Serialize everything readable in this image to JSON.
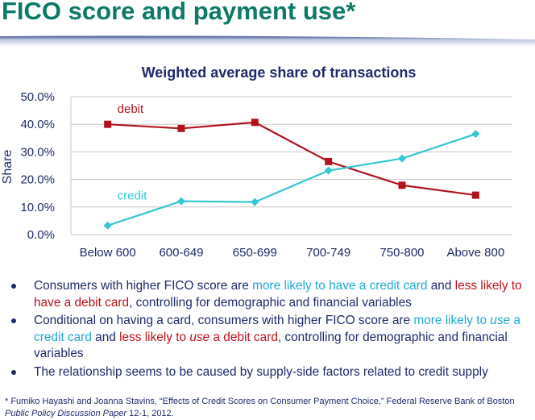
{
  "slide": {
    "title": "FICO score and payment use*"
  },
  "colors": {
    "title": "#0d7a68",
    "debit": "#b0131e",
    "credit": "#33c7d1",
    "text": "#1f2a6b",
    "highlight_credit": "#1ea9d6",
    "highlight_debit": "#c0101a"
  },
  "chart_data": {
    "type": "line",
    "title": "Weighted average share of transactions",
    "xlabel": "",
    "ylabel": "Share",
    "categories": [
      "Below 600",
      "600-649",
      "650-699",
      "700-749",
      "750-800",
      "Above 800"
    ],
    "ylim": [
      0,
      50
    ],
    "yticks": [
      "0.0%",
      "10.0%",
      "20.0%",
      "30.0%",
      "40.0%",
      "50.0%"
    ],
    "grid": "horizontal",
    "series": [
      {
        "name": "debit",
        "marker": "square",
        "values": [
          40.0,
          38.5,
          40.7,
          26.5,
          17.9,
          14.3
        ]
      },
      {
        "name": "credit",
        "marker": "diamond",
        "values": [
          3.3,
          12.1,
          11.8,
          23.2,
          27.6,
          36.5
        ]
      }
    ]
  },
  "bullets": [
    {
      "parts": [
        {
          "t": "Consumers with higher FICO score are ",
          "c": ""
        },
        {
          "t": "more likely to have a credit card",
          "c": "hl-credit"
        },
        {
          "t": " and ",
          "c": ""
        },
        {
          "t": "less likely to have a debit card",
          "c": "hl-debit"
        },
        {
          "t": ", controlling for demographic and financial variables",
          "c": ""
        }
      ]
    },
    {
      "parts": [
        {
          "t": "Conditional on having a card, consumers with higher FICO score are ",
          "c": ""
        },
        {
          "t": "more likely to ",
          "c": "hl-credit"
        },
        {
          "t": "use",
          "c": "hl-credit",
          "em": true
        },
        {
          "t": " a credit card",
          "c": "hl-credit"
        },
        {
          "t": " and ",
          "c": ""
        },
        {
          "t": "less likely to ",
          "c": "hl-debit"
        },
        {
          "t": "use",
          "c": "hl-debit",
          "em": true
        },
        {
          "t": " a debit card",
          "c": "hl-debit"
        },
        {
          "t": ", controlling for demographic and financial variables",
          "c": ""
        }
      ]
    },
    {
      "parts": [
        {
          "t": "The relationship seems to be caused by supply-side factors related to credit supply",
          "c": ""
        }
      ]
    }
  ],
  "footnote": {
    "main": "* Fumiko Hayashi and Joanna Stavins, “Effects of Credit Scores on Consumer Payment Choice,” Federal Reserve Bank of Boston",
    "source_italic": "Public Policy Discussion Paper",
    "source_rest": " 12-1, 2012."
  }
}
